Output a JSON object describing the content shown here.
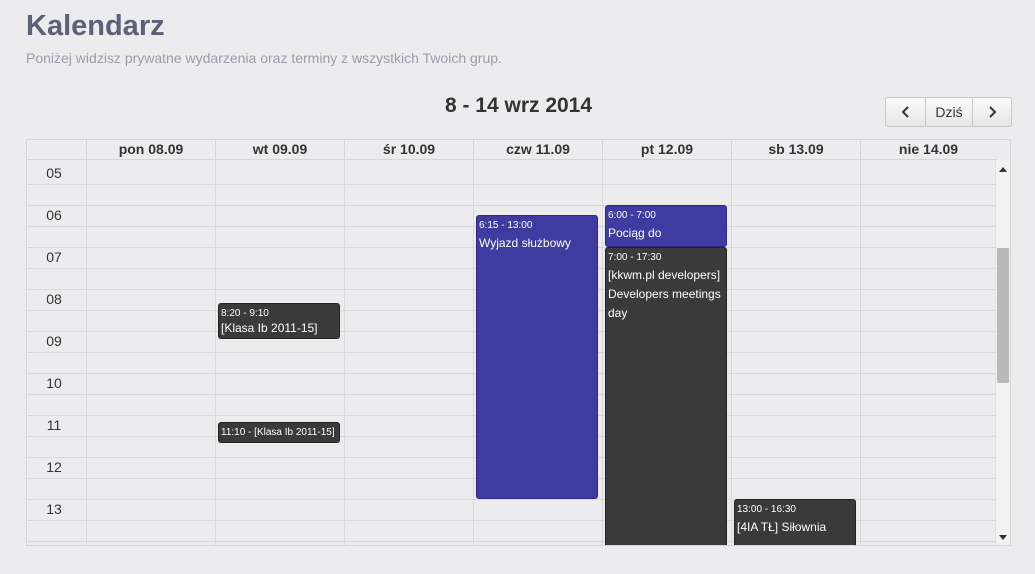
{
  "page": {
    "title": "Kalendarz",
    "subtitle": "Poniżej widzisz prywatne wydarzenia oraz terminy z wszystkich Twoich grup."
  },
  "toolbar": {
    "range": "8 - 14 wrz 2014",
    "prev_icon": "chevron-left-icon",
    "today_label": "Dziś",
    "next_icon": "chevron-right-icon"
  },
  "days": [
    "pon 08.09",
    "wt 09.09",
    "śr 10.09",
    "czw 11.09",
    "pt 12.09",
    "sb 13.09",
    "nie 14.09"
  ],
  "hours": [
    "05",
    "06",
    "07",
    "08",
    "09",
    "10",
    "11",
    "12",
    "13"
  ],
  "events": [
    {
      "time": "8:20 - 9:10",
      "title": "[Klasa Ib 2011-15]",
      "color": "#3a3a3a"
    },
    {
      "time": "11:10 - [Klasa Ib 2011-15]",
      "title": "",
      "color": "#3a3a3a"
    },
    {
      "time": "6:15 - 13:00",
      "title": "Wyjazd służbowy",
      "color": "#3e3ca0"
    },
    {
      "time": "6:00 - 7:00",
      "title": "Pociąg do Chrzanowa",
      "color": "#3e3ca0"
    },
    {
      "time": "7:00 - 17:30",
      "title": "[kkwm.pl developers] Developers meetings day",
      "color": "#3a3a3a"
    },
    {
      "time": "13:00 - 16:30",
      "title": "[4IA TŁ] Siłownia",
      "color": "#3a3a3a"
    }
  ],
  "colors": {
    "background": "#ececee",
    "title": "#5d6077",
    "event_dark": "#3a3a3a",
    "event_blue": "#3e3ca0"
  }
}
